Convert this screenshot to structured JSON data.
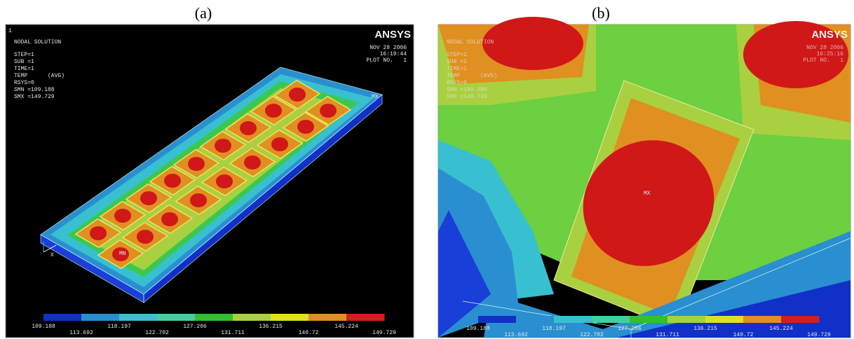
{
  "legend_colors": [
    "#1030c8",
    "#2a8fd0",
    "#38c0d0",
    "#40d0a0",
    "#30c030",
    "#a8d040",
    "#e0e020",
    "#e09020",
    "#d02020"
  ],
  "panels": [
    {
      "label": "(a)",
      "corner": "1",
      "logo": "ANSYS",
      "info": [
        "NODAL SOLUTION",
        "STEP=1",
        "SUB =1",
        "TIME=1",
        "TEMP      (AVG)",
        "RSYS=0",
        "SMN =109.188",
        "SMX =149.729"
      ],
      "stamp": [
        "NOV 28 2006",
        "16:19:44",
        "PLOT NO.   1"
      ],
      "markers": [
        "MN",
        "MX",
        "X"
      ],
      "legend": [
        "109.188",
        "113.692",
        "118.197",
        "122.702",
        "127.206",
        "131.711",
        "136.215",
        "140.72",
        "145.224",
        "149.729"
      ]
    },
    {
      "label": "(b)",
      "logo": "ANSYS",
      "info": [
        "NODAL SOLUTION",
        "STEP=1",
        "SUB =1",
        "TIME=1",
        "TEMP      (AVG)",
        "RSYS=0",
        "SMN =109.188",
        "SMX =149.729"
      ],
      "stamp": [
        "NOV 28 2006",
        "16:25:16",
        "PLOT NO.   1"
      ],
      "markers": [
        "MX"
      ],
      "legend": [
        "109.188",
        "113.692",
        "118.197",
        "122.702",
        "127.206",
        "131.711",
        "136.215",
        "140.72",
        "145.224",
        "149.729"
      ]
    }
  ]
}
